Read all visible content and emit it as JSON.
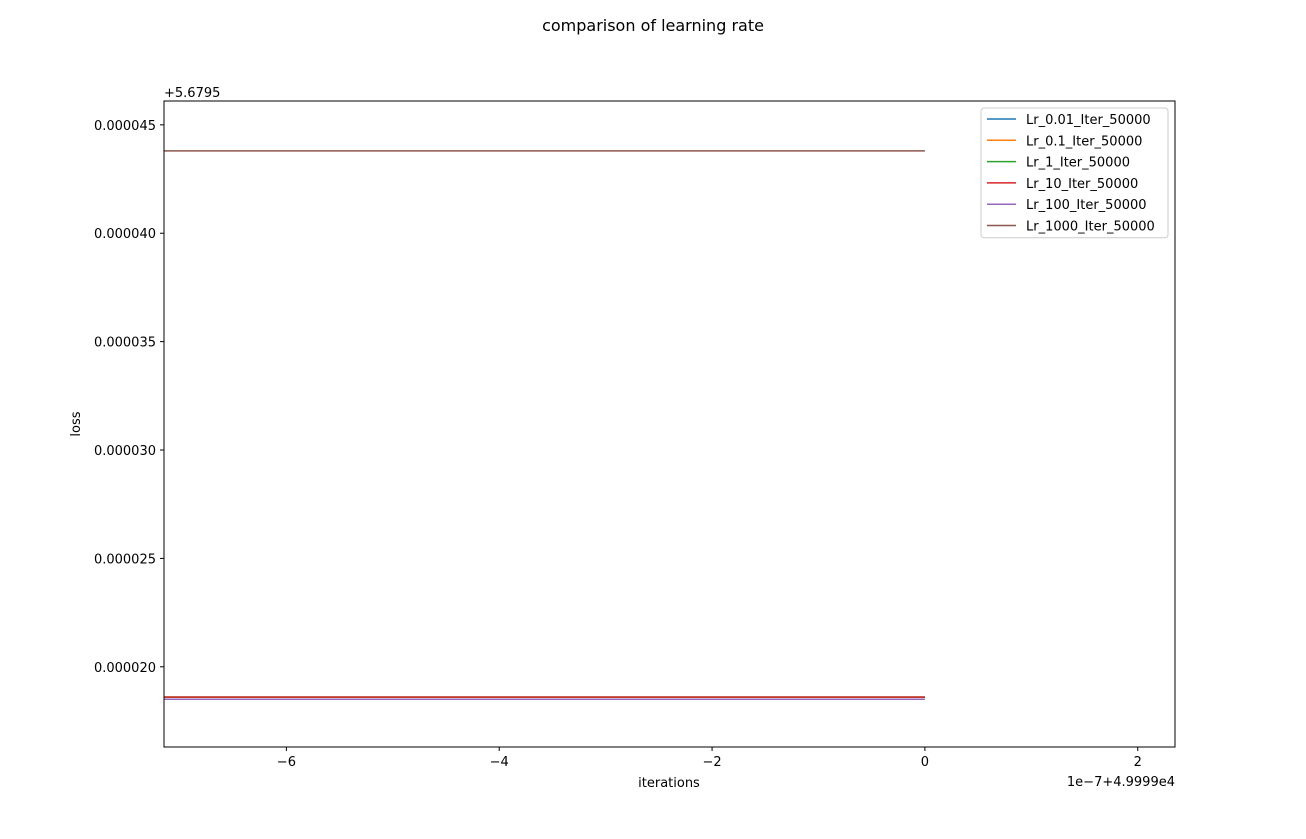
{
  "chart_data": {
    "type": "line",
    "title": "comparison of learning rate",
    "xlabel": "iterations",
    "ylabel": "loss",
    "x_offset_label": "1e−7+4.9999e4",
    "y_offset_label": "+5.6795",
    "xlim": [
      -7.15,
      2.35
    ],
    "ylim": [
      1.63e-05,
      4.61e-05
    ],
    "xticks": [
      -6,
      -4,
      -2,
      0,
      2
    ],
    "xtick_labels": [
      "−6",
      "−4",
      "−2",
      "0",
      "2"
    ],
    "yticks": [
      2e-05,
      2.5e-05,
      3e-05,
      3.5e-05,
      4e-05,
      4.5e-05
    ],
    "ytick_labels": [
      "0.000020",
      "0.000025",
      "0.000030",
      "0.000035",
      "0.000040",
      "0.000045"
    ],
    "grid": false,
    "legend_position": "top-right",
    "series": [
      {
        "name": "Lr_0.01_Iter_50000",
        "color": "#1f77b4",
        "x": [
          -7.15,
          0
        ],
        "y": [
          1.86e-05,
          1.86e-05
        ]
      },
      {
        "name": "Lr_0.1_Iter_50000",
        "color": "#ff7f0e",
        "x": [
          -7.15,
          0
        ],
        "y": [
          1.86e-05,
          1.86e-05
        ]
      },
      {
        "name": "Lr_1_Iter_50000",
        "color": "#2ca02c",
        "x": [
          -7.15,
          0
        ],
        "y": [
          1.86e-05,
          1.86e-05
        ]
      },
      {
        "name": "Lr_10_Iter_50000",
        "color": "#d62728",
        "x": [
          -7.15,
          0
        ],
        "y": [
          1.86e-05,
          1.86e-05
        ]
      },
      {
        "name": "Lr_100_Iter_50000",
        "color": "#9467bd",
        "x": [
          -7.15,
          0
        ],
        "y": [
          1.85e-05,
          1.85e-05
        ]
      },
      {
        "name": "Lr_1000_Iter_50000",
        "color": "#8c564b",
        "x": [
          -7.15,
          0
        ],
        "y": [
          4.38e-05,
          4.38e-05
        ]
      }
    ]
  }
}
